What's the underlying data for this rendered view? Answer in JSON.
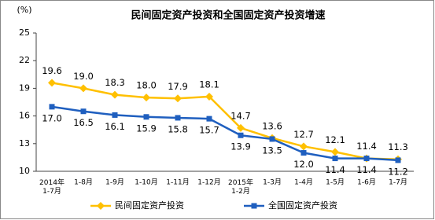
{
  "chart_data": {
    "type": "line",
    "title": "民间固定资产投资和全国固定资产投资增速",
    "y_label": "(%)",
    "categories": [
      "2014年\n1-7月",
      "1-8月",
      "1-9月",
      "1-10月",
      "1-11月",
      "1-12月",
      "2015年\n1-2月",
      "1-3月",
      "1-4月",
      "1-5月",
      "1-6月",
      "1-7月"
    ],
    "series": [
      {
        "name": "民间固定资产投资",
        "color": "#ffc000",
        "marker": "diamond",
        "values": [
          19.6,
          19.0,
          18.3,
          18.0,
          17.9,
          18.1,
          14.7,
          13.6,
          12.7,
          12.1,
          11.4,
          11.3
        ],
        "value_labels": [
          "19.6",
          "19.0",
          "18.3",
          "18.0",
          "17.9",
          "18.1",
          "14.7",
          "13.6",
          "12.7",
          "12.1",
          "11.4",
          "11.3"
        ]
      },
      {
        "name": "全国固定资产投资",
        "color": "#1f5fbf",
        "marker": "square",
        "values": [
          17.0,
          16.5,
          16.1,
          15.9,
          15.8,
          15.7,
          13.9,
          13.5,
          12.0,
          11.4,
          11.4,
          11.2
        ],
        "value_labels": [
          "17.0",
          "16.5",
          "16.1",
          "15.9",
          "15.8",
          "15.7",
          "13.9",
          "13.5",
          "12.0",
          "11.4",
          "11.4",
          "11.2"
        ]
      }
    ],
    "ylim": [
      10,
      25
    ],
    "yticks": [
      10,
      13,
      16,
      19,
      22,
      25
    ],
    "grid": false,
    "legend": "bottom"
  }
}
